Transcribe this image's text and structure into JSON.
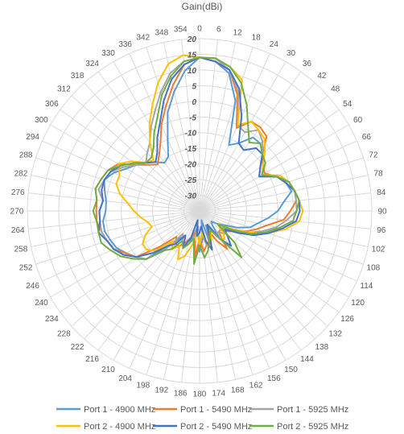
{
  "chart_data": {
    "type": "line",
    "subtype": "polar-radar",
    "title": "Gain(dBi)",
    "radial_axis": {
      "min": -35,
      "max": 20,
      "step": 5,
      "tick_labels": [
        "20",
        "15",
        "10",
        "5",
        "0",
        "-5",
        "-10",
        "-15",
        "-20",
        "-25",
        "-30"
      ]
    },
    "angle_step_deg": 6,
    "angle_labels": [
      "0",
      "6",
      "12",
      "18",
      "24",
      "30",
      "36",
      "42",
      "48",
      "54",
      "60",
      "66",
      "72",
      "78",
      "84",
      "90",
      "96",
      "102",
      "108",
      "114",
      "120",
      "126",
      "132",
      "138",
      "144",
      "150",
      "156",
      "162",
      "168",
      "174",
      "180",
      "186",
      "192",
      "198",
      "204",
      "210",
      "216",
      "222",
      "228",
      "234",
      "240",
      "246",
      "252",
      "258",
      "264",
      "270",
      "276",
      "282",
      "288",
      "294",
      "300",
      "306",
      "312",
      "318",
      "324",
      "330",
      "336",
      "342",
      "348",
      "354"
    ],
    "grid": true,
    "legend_position": "bottom",
    "series": [
      {
        "name": "Port 1 - 4900 MHz",
        "color": "#5b9bd5",
        "values": [
          14,
          13,
          10,
          2,
          -12,
          -10,
          -6,
          -6,
          -8,
          -11,
          -13,
          -8,
          -6,
          -5,
          -8,
          -10,
          -13,
          -16,
          -18,
          -22,
          -26,
          -28,
          -30,
          -29,
          -24,
          -28,
          -30,
          -22,
          -32,
          -26,
          -22,
          -30,
          -28,
          -24,
          -22,
          -26,
          -24,
          -20,
          -12,
          -10,
          -8,
          -6,
          -5,
          -4,
          -4,
          -5,
          -5,
          -4,
          -3,
          -5,
          -8,
          -10,
          -12,
          -14,
          -16,
          -15,
          -10,
          -2,
          4,
          10
        ]
      },
      {
        "name": "Port 1 - 5490 MHz",
        "color": "#ed7d31",
        "values": [
          14,
          13,
          11,
          4,
          -6,
          -2,
          -2,
          -3,
          -8,
          -10,
          -11,
          -8,
          -5,
          -4,
          -4,
          -6,
          -8,
          -13,
          -16,
          -19,
          -22,
          -24,
          -26,
          -26,
          -20,
          -24,
          -28,
          -25,
          -24,
          -22,
          -26,
          -20,
          -28,
          -26,
          -24,
          -22,
          -22,
          -24,
          -18,
          -10,
          -8,
          -5,
          -4,
          -3,
          -2,
          -2,
          -2,
          -1,
          -2,
          -3,
          -5,
          -10,
          -13,
          -15,
          -13,
          -10,
          -5,
          0,
          6,
          12
        ]
      },
      {
        "name": "Port 1 - 5925 MHz",
        "color": "#a5a5a5",
        "values": [
          14,
          14,
          11,
          5,
          -5,
          -6,
          -3,
          -5,
          -8,
          -11,
          -13,
          -8,
          -6,
          -4,
          -4,
          -4,
          -7,
          -10,
          -14,
          -18,
          -22,
          -26,
          -24,
          -26,
          -26,
          -28,
          -26,
          -23,
          -24,
          -27,
          -25,
          -29,
          -26,
          -24,
          -22,
          -24,
          -26,
          -18,
          -12,
          -10,
          -7,
          -5,
          -4,
          -3,
          -3,
          -3,
          -4,
          -2,
          -3,
          -4,
          -7,
          -10,
          -12,
          -10,
          -8,
          -4,
          0,
          5,
          10,
          13
        ]
      },
      {
        "name": "Port 2 - 4900 MHz",
        "color": "#ffc000",
        "values": [
          14,
          14,
          12,
          9,
          -5,
          -2,
          -3,
          -4,
          -7,
          -10,
          -12,
          -7,
          -5,
          -4,
          -3,
          -2,
          -3,
          -7,
          -12,
          -18,
          -24,
          -28,
          -25,
          -23,
          -24,
          -28,
          -26,
          -23,
          -25,
          -28,
          -24,
          -28,
          -24,
          -20,
          -18,
          -22,
          -20,
          -22,
          -16,
          -14,
          -14,
          -16,
          -19,
          -18,
          -16,
          -14,
          -12,
          -9,
          -7,
          -7,
          -5,
          -8,
          -12,
          -13,
          -8,
          -3,
          2,
          8,
          13,
          15
        ]
      },
      {
        "name": "Port 2 - 5490 MHz",
        "color": "#4472c4",
        "values": [
          14,
          13,
          11,
          6,
          -2,
          -10,
          -11,
          -8,
          -8,
          -11,
          -13,
          -8,
          -6,
          -4,
          -3,
          -3,
          -4,
          -8,
          -12,
          -16,
          -21,
          -25,
          -23,
          -20,
          -24,
          -30,
          -28,
          -22,
          -25,
          -30,
          -28,
          -27,
          -32,
          -26,
          -22,
          -26,
          -22,
          -20,
          -15,
          -10,
          -7,
          -5,
          -4,
          -2,
          -3,
          -3,
          -4,
          -3,
          -3,
          -4,
          -6,
          -9,
          -12,
          -14,
          -12,
          -8,
          -4,
          2,
          8,
          12
        ]
      },
      {
        "name": "Port 2 - 5925 MHz",
        "color": "#70ad47",
        "values": [
          14,
          14,
          12,
          8,
          2,
          -4,
          -8,
          -6,
          -8,
          -9,
          -12,
          -8,
          -5,
          -4,
          -3,
          -4,
          -5,
          -9,
          -13,
          -17,
          -23,
          -28,
          -20,
          -15,
          -24,
          -28,
          -27,
          -25,
          -22,
          -20,
          -24,
          -18,
          -26,
          -24,
          -22,
          -24,
          -20,
          -18,
          -12,
          -9,
          -6,
          -4,
          -2,
          -2,
          -2,
          -1,
          -2,
          -1,
          -2,
          -3,
          -6,
          -9,
          -12,
          -12,
          -10,
          -6,
          -2,
          4,
          9,
          13
        ]
      }
    ]
  }
}
